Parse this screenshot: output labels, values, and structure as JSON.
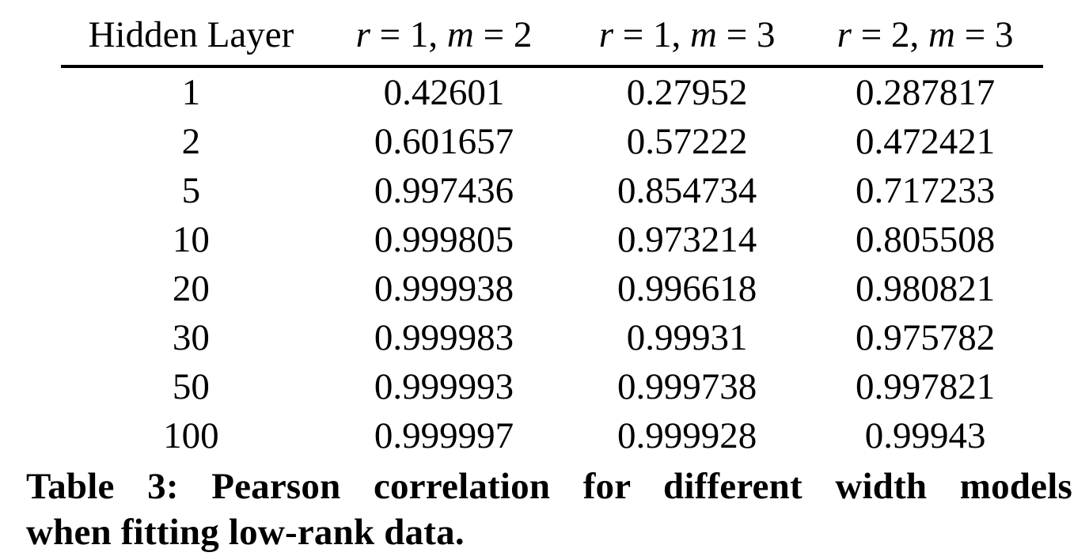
{
  "table": {
    "header": {
      "col0": "Hidden Layer",
      "math_cols": [
        {
          "label": "r = 1, m = 2",
          "parts": [
            {
              "t": "r",
              "i": true
            },
            {
              "t": " = 1, ",
              "i": false
            },
            {
              "t": "m",
              "i": true
            },
            {
              "t": " = 2",
              "i": false
            }
          ]
        },
        {
          "label": "r = 1, m = 3",
          "parts": [
            {
              "t": "r",
              "i": true
            },
            {
              "t": " = 1, ",
              "i": false
            },
            {
              "t": "m",
              "i": true
            },
            {
              "t": " = 3",
              "i": false
            }
          ]
        },
        {
          "label": "r = 2, m = 3",
          "parts": [
            {
              "t": "r",
              "i": true
            },
            {
              "t": " = 2, ",
              "i": false
            },
            {
              "t": "m",
              "i": true
            },
            {
              "t": " = 3",
              "i": false
            }
          ]
        }
      ]
    },
    "rows": [
      {
        "layer": "1",
        "values": [
          "0.42601",
          "0.27952",
          "0.287817"
        ]
      },
      {
        "layer": "2",
        "values": [
          "0.601657",
          "0.57222",
          "0.472421"
        ]
      },
      {
        "layer": "5",
        "values": [
          "0.997436",
          "0.854734",
          "0.717233"
        ]
      },
      {
        "layer": "10",
        "values": [
          "0.999805",
          "0.973214",
          "0.805508"
        ]
      },
      {
        "layer": "20",
        "values": [
          "0.999938",
          "0.996618",
          "0.980821"
        ]
      },
      {
        "layer": "30",
        "values": [
          "0.999983",
          "0.99931",
          "0.975782"
        ]
      },
      {
        "layer": "50",
        "values": [
          "0.999993",
          "0.999738",
          "0.997821"
        ]
      },
      {
        "layer": "100",
        "values": [
          "0.999997",
          "0.999928",
          "0.99943"
        ]
      }
    ]
  },
  "caption": {
    "line1": "Table 3: Pearson correlation for different width models",
    "line2": "when fitting low-rank data."
  }
}
